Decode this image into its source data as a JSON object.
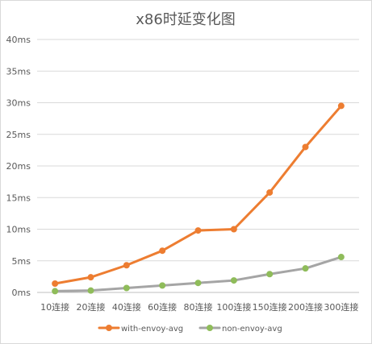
{
  "chart_data": {
    "type": "line",
    "title": "x86时延变化图",
    "xlabel": "",
    "ylabel": "",
    "categories": [
      "10连接",
      "20连接",
      "40连接",
      "60连接",
      "80连接",
      "100连接",
      "150连接",
      "200连接",
      "300连接"
    ],
    "y_ticks": [
      "0ms",
      "5ms",
      "10ms",
      "15ms",
      "20ms",
      "25ms",
      "30ms",
      "35ms",
      "40ms"
    ],
    "ylim": [
      0,
      40
    ],
    "grid": true,
    "legend_position": "bottom",
    "series": [
      {
        "name": "with-envoy-avg",
        "color": "#ed7d31",
        "values": [
          1.4,
          2.4,
          4.3,
          6.6,
          9.8,
          10.0,
          15.8,
          23.0,
          29.5
        ]
      },
      {
        "name": "non-envoy-avg",
        "color": "#a5a5a5",
        "marker_color": "#8fbc5a",
        "values": [
          0.2,
          0.3,
          0.7,
          1.1,
          1.5,
          1.9,
          2.9,
          3.8,
          5.6
        ]
      }
    ]
  }
}
